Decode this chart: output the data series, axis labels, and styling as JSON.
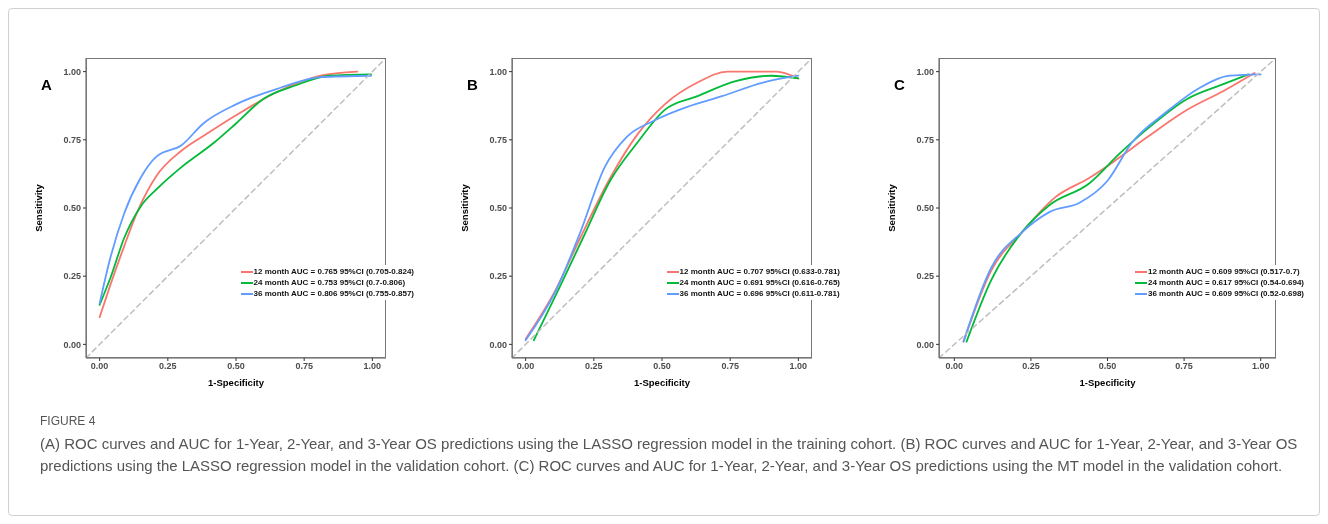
{
  "chart_data": [
    {
      "type": "line",
      "title": "A",
      "xlabel": "1-Specificity",
      "ylabel": "Sensitivity",
      "marker": "none",
      "legend": "bottom right",
      "xlim": [
        -0.05,
        1.05
      ],
      "ylim": [
        -0.05,
        1.05
      ],
      "xticks": [
        {
          "value": 0,
          "label": "0.00"
        },
        {
          "value": 0.25,
          "label": "0.25"
        },
        {
          "value": 0.5,
          "label": "0.50"
        },
        {
          "value": 0.75,
          "label": "0.75"
        },
        {
          "value": 1,
          "label": "1.00"
        }
      ],
      "yticks": [
        {
          "value": 0,
          "label": "0.00"
        },
        {
          "value": 0.25,
          "label": "0.25"
        },
        {
          "value": 0.5,
          "label": "0.50"
        },
        {
          "value": 0.75,
          "label": "0.75"
        },
        {
          "value": 1,
          "label": "1.00"
        }
      ],
      "series": [
        {
          "name": "12 month AUC = 0.765 95%CI (0.705-0.824)",
          "color": "#f8766d",
          "x": [
            0,
            0.04,
            0.09,
            0.14,
            0.21,
            0.3,
            0.39,
            0.5,
            0.66,
            0.81,
            0.945
          ],
          "values": [
            0.1,
            0.22,
            0.36,
            0.49,
            0.62,
            0.71,
            0.77,
            0.84,
            0.93,
            0.985,
            1.0
          ]
        },
        {
          "name": "24 month AUC = 0.753 95%CI (0.7-0.806)",
          "color": "#00ba38",
          "x": [
            0,
            0.04,
            0.09,
            0.15,
            0.21,
            0.3,
            0.42,
            0.5,
            0.6,
            0.72,
            0.84,
            0.995
          ],
          "values": [
            0.145,
            0.245,
            0.39,
            0.505,
            0.57,
            0.65,
            0.74,
            0.81,
            0.9,
            0.95,
            0.985,
            0.99
          ]
        },
        {
          "name": "36 month AUC = 0.806 95%CI (0.755-0.857)",
          "color": "#619cff",
          "x": [
            0,
            0.04,
            0.09,
            0.15,
            0.21,
            0.3,
            0.38,
            0.5,
            0.66,
            0.81,
            0.995
          ],
          "values": [
            0.15,
            0.32,
            0.48,
            0.61,
            0.69,
            0.73,
            0.81,
            0.88,
            0.94,
            0.98,
            0.985
          ]
        },
        {
          "color": "#bebebe",
          "line_style": "dashed",
          "x": [
            -0.05,
            1.05
          ],
          "values": [
            -0.05,
            1.05
          ]
        }
      ]
    },
    {
      "type": "line",
      "title": "B",
      "xlabel": "1-Specificity",
      "ylabel": "Sensitivity",
      "marker": "none",
      "legend": "bottom right",
      "xlim": [
        -0.05,
        1.05
      ],
      "ylim": [
        -0.05,
        1.05
      ],
      "xticks": [
        {
          "value": 0,
          "label": "0.00"
        },
        {
          "value": 0.25,
          "label": "0.25"
        },
        {
          "value": 0.5,
          "label": "0.50"
        },
        {
          "value": 0.75,
          "label": "0.75"
        },
        {
          "value": 1,
          "label": "1.00"
        }
      ],
      "yticks": [
        {
          "value": 0,
          "label": "0.00"
        },
        {
          "value": 0.25,
          "label": "0.25"
        },
        {
          "value": 0.5,
          "label": "0.50"
        },
        {
          "value": 0.75,
          "label": "0.75"
        },
        {
          "value": 1,
          "label": "1.00"
        }
      ],
      "series": [
        {
          "name": "12 month AUC = 0.707 95%CI (0.633-0.781)",
          "color": "#f8766d",
          "x": [
            0,
            0.11,
            0.2,
            0.31,
            0.41,
            0.51,
            0.63,
            0.74,
            0.92,
            1.0
          ],
          "values": [
            0.02,
            0.2,
            0.39,
            0.61,
            0.77,
            0.88,
            0.96,
            1.0,
            1.0,
            0.975
          ]
        },
        {
          "name": "24 month AUC = 0.691 95%CI (0.616-0.765)",
          "color": "#00ba38",
          "x": [
            0.03,
            0.12,
            0.21,
            0.31,
            0.41,
            0.51,
            0.63,
            0.77,
            0.9,
            1.0
          ],
          "values": [
            0.015,
            0.2,
            0.39,
            0.6,
            0.74,
            0.86,
            0.91,
            0.965,
            0.985,
            0.975
          ]
        },
        {
          "name": "36 month AUC = 0.696 95%CI (0.611-0.781)",
          "color": "#619cff",
          "x": [
            0,
            0.11,
            0.2,
            0.29,
            0.37,
            0.47,
            0.59,
            0.72,
            0.87,
            1.0
          ],
          "values": [
            0.015,
            0.195,
            0.41,
            0.65,
            0.76,
            0.82,
            0.87,
            0.91,
            0.96,
            0.985
          ]
        },
        {
          "color": "#bebebe",
          "line_style": "dashed",
          "x": [
            -0.05,
            1.05
          ],
          "values": [
            -0.05,
            1.05
          ]
        }
      ]
    },
    {
      "type": "line",
      "title": "C",
      "xlabel": "1-Specificity",
      "ylabel": "Sensitivity",
      "marker": "none",
      "legend": "bottom right",
      "xlim": [
        -0.05,
        1.05
      ],
      "ylim": [
        -0.05,
        1.05
      ],
      "xticks": [
        {
          "value": 0,
          "label": "0.00"
        },
        {
          "value": 0.25,
          "label": "0.25"
        },
        {
          "value": 0.5,
          "label": "0.50"
        },
        {
          "value": 0.75,
          "label": "0.75"
        },
        {
          "value": 1,
          "label": "1.00"
        }
      ],
      "yticks": [
        {
          "value": 0,
          "label": "0.00"
        },
        {
          "value": 0.25,
          "label": "0.25"
        },
        {
          "value": 0.5,
          "label": "0.50"
        },
        {
          "value": 0.75,
          "label": "0.75"
        },
        {
          "value": 1,
          "label": "1.00"
        }
      ],
      "series": [
        {
          "name": "12 month AUC = 0.609 95%CI (0.517-0.7)",
          "color": "#f8766d",
          "x": [
            0.03,
            0.12,
            0.22,
            0.33,
            0.44,
            0.52,
            0.63,
            0.76,
            0.88,
            0.98
          ],
          "values": [
            0.01,
            0.27,
            0.41,
            0.54,
            0.61,
            0.67,
            0.76,
            0.86,
            0.93,
            0.995
          ]
        },
        {
          "name": "24 month AUC = 0.617 95%CI (0.54-0.694)",
          "color": "#00ba38",
          "x": [
            0.04,
            0.12,
            0.22,
            0.31,
            0.44,
            0.54,
            0.63,
            0.76,
            0.88,
            0.96
          ],
          "values": [
            0.01,
            0.235,
            0.41,
            0.51,
            0.59,
            0.7,
            0.79,
            0.9,
            0.955,
            0.99
          ]
        },
        {
          "name": "36 month AUC = 0.609 95%CI (0.52-0.698)",
          "color": "#619cff",
          "x": [
            0.03,
            0.12,
            0.22,
            0.31,
            0.41,
            0.5,
            0.58,
            0.69,
            0.8,
            0.9,
            1.0
          ],
          "values": [
            0.01,
            0.28,
            0.41,
            0.485,
            0.52,
            0.6,
            0.74,
            0.85,
            0.94,
            0.985,
            0.99
          ]
        },
        {
          "color": "#bebebe",
          "line_style": "dashed",
          "x": [
            -0.05,
            1.05
          ],
          "values": [
            -0.05,
            1.05
          ]
        }
      ],
      "annotations": [
        "FIGURE 4",
        "(A) ROC curves and AUC for 1-Year, 2-Year, and 3-Year OS predictions using the LASSO regression model in the training cohort. (B) ROC curves and AUC for 1-Year, 2-Year, and 3-Year OS predictions using the LASSO regression model in the validation cohort. (C) ROC curves and AUC for 1-Year, 2-Year, and 3-Year OS predictions using the MT model in the validation cohort."
      ]
    }
  ]
}
